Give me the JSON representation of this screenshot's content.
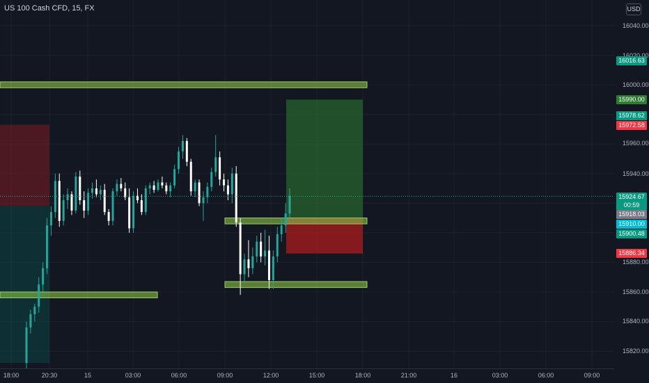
{
  "title": "US 100 Cash CFD, 15, FX",
  "currency": "USD",
  "yaxis": {
    "ticks": [
      "16040.00",
      "16020.00",
      "16000.00",
      "15960.00",
      "15940.00",
      "15880.00",
      "15860.00",
      "15840.00",
      "15820.00"
    ]
  },
  "price_labels": [
    {
      "text": "16016.63",
      "color": "#089981"
    },
    {
      "text": "15990.00",
      "color": "#2e7d32"
    },
    {
      "text": "15978.62",
      "color": "#089981"
    },
    {
      "text": "15972.58",
      "color": "#f23645"
    },
    {
      "text": "15924.67",
      "color": "#089981"
    },
    {
      "text": "00:59",
      "color": "#089981"
    },
    {
      "text": "15918.03",
      "color": "#787b86"
    },
    {
      "text": "15910.00",
      "color": "#00bcd4"
    },
    {
      "text": "15900.48",
      "color": "#089981"
    },
    {
      "text": "15886.34",
      "color": "#f23645"
    }
  ],
  "xaxis": {
    "ticks": [
      "18:00",
      "20:30",
      "15",
      "03:00",
      "06:00",
      "09:00",
      "12:00",
      "15:00",
      "18:00",
      "21:00",
      "16",
      "03:00",
      "06:00",
      "09:00"
    ]
  },
  "colors": {
    "background": "#131722",
    "up": "#26a69a",
    "down": "#ffffff",
    "zone": "#8bc34a",
    "target": "#2e7d32",
    "stop": "#b71c1c"
  },
  "chart_data": {
    "type": "candlestick",
    "last_price": 15924.67,
    "ylim": [
      15812,
      16050
    ],
    "zones": [
      {
        "name": "supply-zone-top",
        "range": [
          15998,
          16002
        ]
      },
      {
        "name": "demand-zone-low",
        "range": [
          15856,
          15860
        ]
      },
      {
        "name": "demand-zone-right",
        "range": [
          15863,
          15867
        ]
      },
      {
        "name": "mid-zone",
        "range": [
          15906,
          15910
        ]
      }
    ],
    "position_left": {
      "entry": 15918,
      "stop": 15973,
      "target": 15812
    },
    "position_right": {
      "entry": 15910,
      "stop": 15886,
      "target": 15990
    },
    "candles": [
      [
        15812,
        15840,
        15808,
        15836
      ],
      [
        15836,
        15848,
        15832,
        15845
      ],
      [
        15845,
        15852,
        15840,
        15850
      ],
      [
        15850,
        15870,
        15846,
        15865
      ],
      [
        15865,
        15880,
        15860,
        15876
      ],
      [
        15876,
        15910,
        15872,
        15905
      ],
      [
        15905,
        15918,
        15898,
        15914
      ],
      [
        15914,
        15940,
        15910,
        15935
      ],
      [
        15935,
        15940,
        15904,
        15908
      ],
      [
        15908,
        15926,
        15905,
        15922
      ],
      [
        15922,
        15930,
        15916,
        15926
      ],
      [
        15926,
        15928,
        15912,
        15915
      ],
      [
        15915,
        15941,
        15913,
        15938
      ],
      [
        15938,
        15942,
        15919,
        15922
      ],
      [
        15922,
        15928,
        15910,
        15915
      ],
      [
        15915,
        15930,
        15912,
        15927
      ],
      [
        15927,
        15934,
        15923,
        15930
      ],
      [
        15930,
        15936,
        15924,
        15926
      ],
      [
        15926,
        15932,
        15922,
        15929
      ],
      [
        15929,
        15933,
        15912,
        15914
      ],
      [
        15914,
        15916,
        15905,
        15908
      ],
      [
        15908,
        15930,
        15905,
        15928
      ],
      [
        15928,
        15936,
        15925,
        15933
      ],
      [
        15933,
        15937,
        15928,
        15930
      ],
      [
        15930,
        15934,
        15922,
        15924
      ],
      [
        15924,
        15930,
        15900,
        15903
      ],
      [
        15903,
        15928,
        15900,
        15925
      ],
      [
        15925,
        15930,
        15920,
        15922
      ],
      [
        15922,
        15926,
        15912,
        15914
      ],
      [
        15914,
        15932,
        15912,
        15930
      ],
      [
        15930,
        15934,
        15926,
        15932
      ],
      [
        15932,
        15935,
        15927,
        15929
      ],
      [
        15929,
        15936,
        15928,
        15934
      ],
      [
        15934,
        15938,
        15930,
        15932
      ],
      [
        15932,
        15934,
        15926,
        15928
      ],
      [
        15928,
        15934,
        15924,
        15932
      ],
      [
        15932,
        15946,
        15930,
        15943
      ],
      [
        15943,
        15958,
        15940,
        15955
      ],
      [
        15955,
        15966,
        15950,
        15962
      ],
      [
        15962,
        15964,
        15945,
        15948
      ],
      [
        15948,
        15950,
        15925,
        15928
      ],
      [
        15928,
        15936,
        15924,
        15934
      ],
      [
        15934,
        15936,
        15918,
        15920
      ],
      [
        15920,
        15928,
        15908,
        15924
      ],
      [
        15924,
        15934,
        15920,
        15931
      ],
      [
        15931,
        15944,
        15928,
        15941
      ],
      [
        15941,
        15966,
        15938,
        15951
      ],
      [
        15951,
        15955,
        15932,
        15936
      ],
      [
        15936,
        15940,
        15928,
        15932
      ],
      [
        15932,
        15936,
        15922,
        15926
      ],
      [
        15926,
        15944,
        15920,
        15940
      ],
      [
        15940,
        15945,
        15904,
        15907
      ],
      [
        15907,
        15910,
        15858,
        15872
      ],
      [
        15872,
        15886,
        15866,
        15882
      ],
      [
        15882,
        15895,
        15870,
        15876
      ],
      [
        15876,
        15890,
        15872,
        15884
      ],
      [
        15884,
        15898,
        15880,
        15894
      ],
      [
        15894,
        15900,
        15880,
        15884
      ],
      [
        15884,
        15902,
        15878,
        15888
      ],
      [
        15888,
        15898,
        15862,
        15868
      ],
      [
        15868,
        15888,
        15862,
        15884
      ],
      [
        15884,
        15904,
        15880,
        15899
      ],
      [
        15899,
        15910,
        15894,
        15905
      ],
      [
        15905,
        15920,
        15900,
        15913
      ],
      [
        15913,
        15930,
        15908,
        15925
      ]
    ]
  }
}
